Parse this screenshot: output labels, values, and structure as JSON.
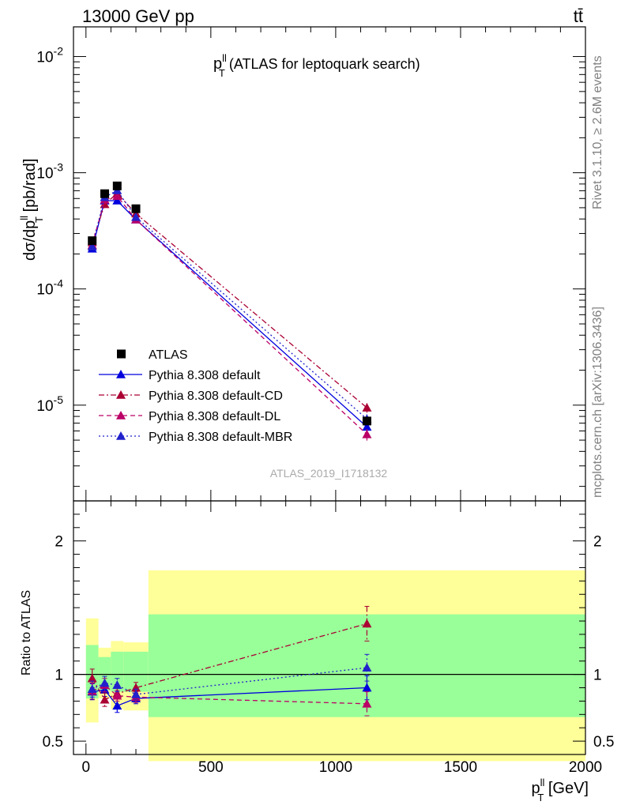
{
  "header": {
    "left": "13000 GeV pp",
    "right": "tt̄"
  },
  "side_text": {
    "rivet": "Rivet 3.1.10, ≥ 2.6M events",
    "url": "mcplots.cern.ch [arXiv:1306.3436]"
  },
  "analysis_id": "ATLAS_2019_I1718132",
  "chart_data": {
    "type": "line",
    "title": "p_T^ll (ATLAS for leptoquark search)",
    "title_main": "p",
    "title_sub": "T",
    "title_sup": "ll",
    "title_rest": " (ATLAS for leptoquark search)",
    "ylabel": "dσ/dp_T^ll [pb/rad]",
    "ylabel_main": "dσ/dp",
    "ylabel_sub": "T",
    "ylabel_sup": "ll",
    "ylabel_rest": " [pb/rad]",
    "ratio_ylabel": "Ratio to ATLAS",
    "xlabel": "p_T^ll [GeV]",
    "xlabel_main": "p",
    "xlabel_sub": "T",
    "xlabel_sup": "ll",
    "xlabel_rest": " [GeV]",
    "xlim": [
      -50,
      2000
    ],
    "ylim_log": [
      1.5e-06,
      0.018
    ],
    "ratio_ylim": [
      0.4,
      2.3
    ],
    "x_ticks": [
      0,
      500,
      1000,
      1500,
      2000
    ],
    "x_tick_labels": [
      "0",
      "500",
      "1000",
      "1500",
      "2000"
    ],
    "y_ticks": [
      0.01,
      0.001,
      0.0001,
      1e-05
    ],
    "y_tick_labels": [
      "10^-2",
      "10^-3",
      "10^-4",
      "10^-5"
    ],
    "ratio_ticks": [
      0.5,
      1,
      2
    ],
    "ratio_tick_labels": [
      "0.5",
      "1",
      "2"
    ],
    "legend_position": "lower-left",
    "x": [
      25,
      75,
      125,
      200,
      1125
    ],
    "bins": [
      [
        0,
        50
      ],
      [
        50,
        100
      ],
      [
        100,
        150
      ],
      [
        150,
        250
      ],
      [
        250,
        2000
      ]
    ],
    "data": {
      "name": "ATLAS",
      "values": [
        0.00026,
        0.00066,
        0.00077,
        0.00049,
        7.3e-06
      ],
      "band_inner": [
        [
          0.82,
          1.22
        ],
        [
          0.88,
          1.13
        ],
        [
          0.87,
          1.17
        ],
        [
          0.87,
          1.17
        ],
        [
          0.68,
          1.45
        ]
      ],
      "band_outer": [
        [
          0.64,
          1.42
        ],
        [
          0.82,
          1.2
        ],
        [
          0.74,
          1.25
        ],
        [
          0.73,
          1.24
        ],
        [
          0.35,
          1.78
        ]
      ]
    },
    "series": [
      {
        "name": "Pythia 8.308 default",
        "color": "#0000dd",
        "dash": "",
        "values": [
          0.000222,
          0.000575,
          0.000575,
          0.000395,
          6.5e-06
        ],
        "ratio": [
          0.87,
          0.885,
          0.765,
          0.82,
          0.9
        ],
        "ratio_err": [
          0.06,
          0.05,
          0.05,
          0.04,
          0.09
        ]
      },
      {
        "name": "Pythia 8.308 default-CD",
        "color": "#aa0033",
        "dash": "7,3,2,3",
        "values": [
          0.000252,
          0.000535,
          0.000665,
          0.000445,
          9.5e-06
        ],
        "ratio": [
          0.97,
          0.81,
          0.855,
          0.9,
          1.38
        ],
        "ratio_err": [
          0.07,
          0.05,
          0.04,
          0.04,
          0.13
        ]
      },
      {
        "name": "Pythia 8.308 default-DL",
        "color": "#bb0066",
        "dash": "6,4",
        "values": [
          0.000238,
          0.000585,
          0.00063,
          0.000395,
          5.6e-06
        ],
        "ratio": [
          0.875,
          0.92,
          0.84,
          0.83,
          0.78
        ],
        "ratio_err": [
          0.06,
          0.05,
          0.04,
          0.04,
          0.09
        ]
      },
      {
        "name": "Pythia 8.308 default-MBR",
        "color": "#2222cc",
        "dash": "2,3",
        "values": [
          0.000232,
          0.000615,
          0.000705,
          0.000415,
          7.6e-06
        ],
        "ratio": [
          0.89,
          0.935,
          0.92,
          0.85,
          1.05
        ],
        "ratio_err": [
          0.06,
          0.05,
          0.05,
          0.04,
          0.1
        ]
      }
    ]
  }
}
